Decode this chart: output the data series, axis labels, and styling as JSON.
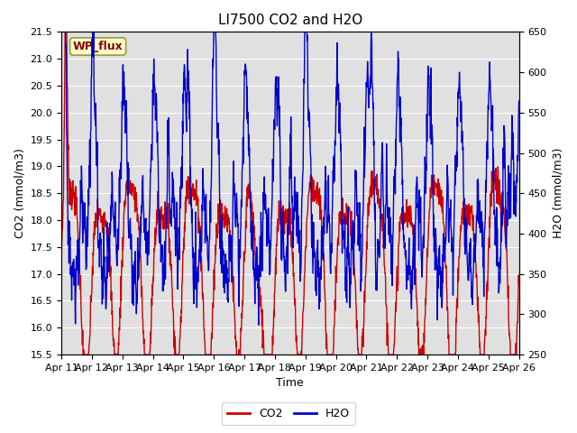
{
  "title": "LI7500 CO2 and H2O",
  "xlabel": "Time",
  "ylabel_left": "CO2 (mmol/m3)",
  "ylabel_right": "H2O (mmol/m3)",
  "ylim_left": [
    15.5,
    21.5
  ],
  "ylim_right": [
    250,
    650
  ],
  "yticks_left": [
    15.5,
    16.0,
    16.5,
    17.0,
    17.5,
    18.0,
    18.5,
    19.0,
    19.5,
    20.0,
    20.5,
    21.0,
    21.5
  ],
  "yticks_right": [
    250,
    300,
    350,
    400,
    450,
    500,
    550,
    600,
    650
  ],
  "xtick_labels": [
    "Apr 11",
    "Apr 12",
    "Apr 13",
    "Apr 14",
    "Apr 15",
    "Apr 16",
    "Apr 17",
    "Apr 18",
    "Apr 19",
    "Apr 20",
    "Apr 21",
    "Apr 22",
    "Apr 23",
    "Apr 24",
    "Apr 25",
    "Apr 26"
  ],
  "co2_color": "#cc0000",
  "h2o_color": "#0000cc",
  "background_color": "#e0e0e0",
  "annotation_text": "WP_flux",
  "annotation_color": "#880000",
  "annotation_bg": "#ffffcc",
  "annotation_edge": "#999933",
  "grid_color": "#ffffff",
  "title_fontsize": 11,
  "axis_label_fontsize": 9,
  "tick_fontsize": 8,
  "legend_fontsize": 9,
  "co2_linewidth": 1.0,
  "h2o_linewidth": 1.0,
  "num_points": 1500,
  "seed": 7
}
